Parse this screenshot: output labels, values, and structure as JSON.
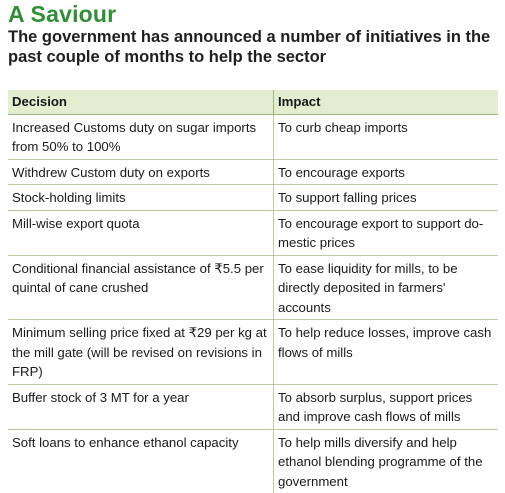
{
  "title": "A Saviour",
  "subtitle": "The government has announced a number of initiatives in the past couple of months to help the sector",
  "table": {
    "headers": [
      "Decision",
      "Impact"
    ],
    "rows": [
      [
        "Increased Customs duty on sugar imports from 50% to 100%",
        "To curb cheap imports"
      ],
      [
        "Withdrew Custom duty on exports",
        "To encourage exports"
      ],
      [
        "Stock-holding limits",
        "To support falling prices"
      ],
      [
        "Mill-wise export quota",
        "To encourage export to support do-mestic prices"
      ],
      [
        "Conditional financial assistance of ₹5.5 per quintal of cane crushed",
        "To ease liquidity for mills, to be directly deposited in farmers' accounts"
      ],
      [
        "Minimum selling price fixed at ₹29 per kg at the mill gate (will be revised on revisions in FRP)",
        "To help reduce losses, improve cash flows of mills"
      ],
      [
        "Buffer stock of 3 MT for a year",
        "To absorb surplus, support prices and improve cash flows of mills"
      ],
      [
        "Soft loans to enhance ethanol capacity",
        "To help mills diversify and help ethanol blending programme of the government"
      ]
    ]
  },
  "colors": {
    "title": "#2f8f34",
    "header_bg": "#e3edcf",
    "rule": "#bcc9a7"
  }
}
